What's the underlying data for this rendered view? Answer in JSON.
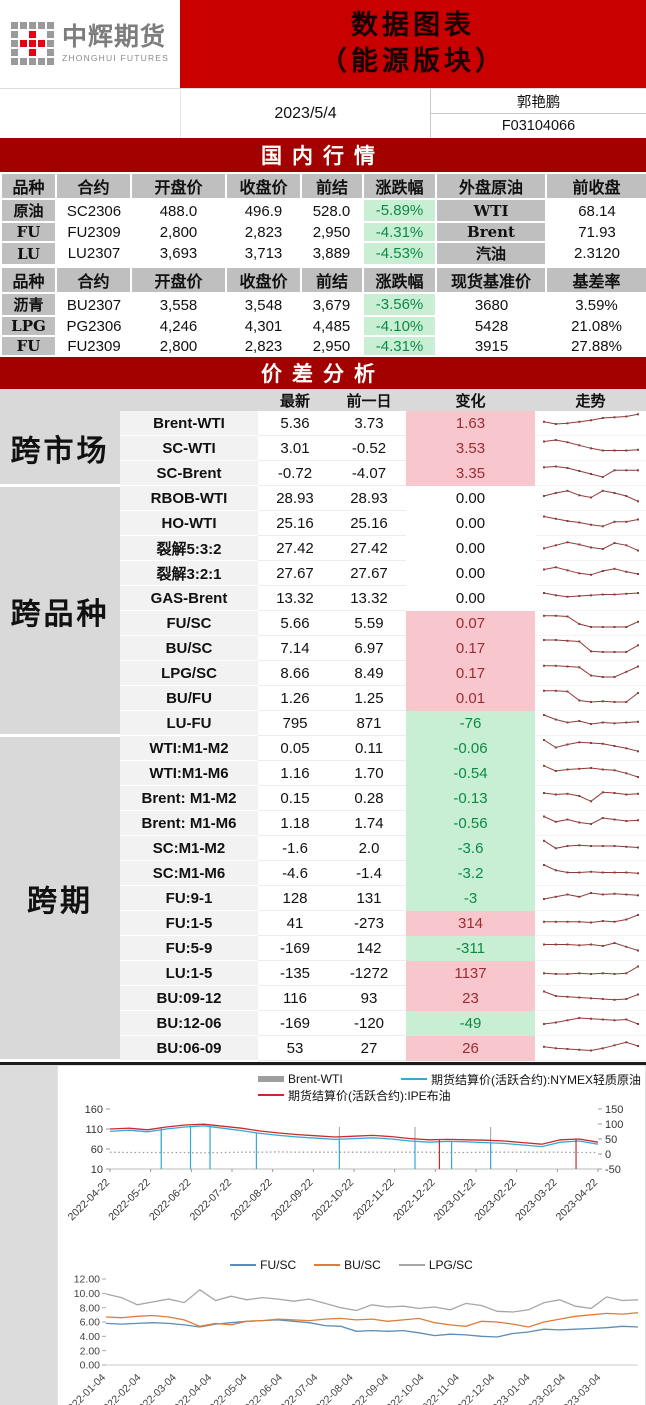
{
  "header": {
    "logo_cn": "中辉期货",
    "logo_en": "ZHONGHUI FUTURES",
    "title_line1": "数据图表",
    "title_line2": "（能源版块）",
    "date": "2023/5/4",
    "author": "郭艳鹏",
    "license_no": "F03104066"
  },
  "colors": {
    "title_bg": "#c80000",
    "section_bg": "#a30000",
    "header_gray": "#bfbfbf",
    "group_gray": "#d9d9d9",
    "label_gray": "#f2f2f2",
    "green_bg": "#c8eed3",
    "green_text": "#0b8a46",
    "pink_bg": "#f7c7cd",
    "pink_text": "#9c2b35",
    "spark": "#8e3b3b",
    "logo_red": "#e60012",
    "logo_gray": "#9a9a9a",
    "chart1_gray": "#9e9e9e",
    "chart1_blue": "#35a7dc",
    "chart1_red": "#cc2a2a",
    "chart2_blue": "#5b8db8",
    "chart2_orange": "#e07b39",
    "chart2_gray": "#a6a6a6"
  },
  "domestic": {
    "section_title": "国内行情",
    "table1": {
      "headers": [
        "品种",
        "合约",
        "开盘价",
        "收盘价",
        "前结",
        "涨跌幅",
        "外盘原油",
        "前收盘"
      ],
      "rows": [
        {
          "variety": "原油",
          "contract": "SC2306",
          "open": "488.0",
          "close": "496.9",
          "prev": "528.0",
          "chg": "-5.89%",
          "ext": "WTI",
          "ext_val": "68.14"
        },
        {
          "variety": "FU",
          "contract": "FU2309",
          "open": "2,800",
          "close": "2,823",
          "prev": "2,950",
          "chg": "-4.31%",
          "ext": "Brent",
          "ext_val": "71.93"
        },
        {
          "variety": "LU",
          "contract": "LU2307",
          "open": "3,693",
          "close": "3,713",
          "prev": "3,889",
          "chg": "-4.53%",
          "ext": "汽油",
          "ext_val": "2.3120"
        }
      ]
    },
    "table2": {
      "headers": [
        "品种",
        "合约",
        "开盘价",
        "收盘价",
        "前结",
        "涨跌幅",
        "现货基准价",
        "基差率"
      ],
      "rows": [
        {
          "variety": "沥青",
          "contract": "BU2307",
          "open": "3,558",
          "close": "3,548",
          "prev": "3,679",
          "chg": "-3.56%",
          "spot": "3680",
          "basis": "3.59%"
        },
        {
          "variety": "LPG",
          "contract": "PG2306",
          "open": "4,246",
          "close": "4,301",
          "prev": "4,485",
          "chg": "-4.10%",
          "spot": "5428",
          "basis": "21.08%"
        },
        {
          "variety": "FU",
          "contract": "FU2309",
          "open": "2,800",
          "close": "2,823",
          "prev": "2,950",
          "chg": "-4.31%",
          "spot": "3915",
          "basis": "27.88%"
        }
      ]
    }
  },
  "spread": {
    "section_title": "价差分析",
    "headers": [
      "",
      "",
      "最新",
      "前一日",
      "变化",
      "走势"
    ],
    "groups": [
      {
        "name": "跨市场",
        "rows": [
          {
            "label": "Brent-WTI",
            "latest": "5.36",
            "prev": "3.73",
            "change": "1.63",
            "dir": "up",
            "spark": [
              0.45,
              0.3,
              0.35,
              0.45,
              0.55,
              0.7,
              0.75,
              0.8,
              0.95
            ]
          },
          {
            "label": "SC-WTI",
            "latest": "3.01",
            "prev": "-0.52",
            "change": "3.53",
            "dir": "up",
            "spark": [
              0.8,
              0.9,
              0.75,
              0.55,
              0.35,
              0.2,
              0.2,
              0.2,
              0.25
            ]
          },
          {
            "label": "SC-Brent",
            "latest": "-0.72",
            "prev": "-4.07",
            "change": "3.35",
            "dir": "up",
            "spark": [
              0.75,
              0.8,
              0.7,
              0.5,
              0.3,
              0.1,
              0.55,
              0.55,
              0.55
            ]
          }
        ]
      },
      {
        "name": "跨品种",
        "rows": [
          {
            "label": "RBOB-WTI",
            "latest": "28.93",
            "prev": "28.93",
            "change": "0.00",
            "dir": "zero",
            "spark": [
              0.5,
              0.7,
              0.85,
              0.55,
              0.4,
              0.85,
              0.7,
              0.5,
              0.15
            ]
          },
          {
            "label": "HO-WTI",
            "latest": "25.16",
            "prev": "25.16",
            "change": "0.00",
            "dir": "zero",
            "spark": [
              0.8,
              0.65,
              0.5,
              0.4,
              0.25,
              0.15,
              0.45,
              0.45,
              0.6
            ]
          },
          {
            "label": "裂解5:3:2",
            "latest": "27.42",
            "prev": "27.42",
            "change": "0.00",
            "dir": "zero",
            "spark": [
              0.35,
              0.55,
              0.75,
              0.6,
              0.4,
              0.3,
              0.7,
              0.55,
              0.2
            ]
          },
          {
            "label": "裂解3:2:1",
            "latest": "27.67",
            "prev": "27.67",
            "change": "0.00",
            "dir": "zero",
            "spark": [
              0.6,
              0.75,
              0.55,
              0.35,
              0.25,
              0.5,
              0.65,
              0.45,
              0.3
            ]
          },
          {
            "label": "GAS-Brent",
            "latest": "13.32",
            "prev": "13.32",
            "change": "0.00",
            "dir": "zero",
            "spark": [
              0.7,
              0.55,
              0.45,
              0.5,
              0.55,
              0.6,
              0.6,
              0.65,
              0.7
            ]
          },
          {
            "label": "FU/SC",
            "latest": "5.66",
            "prev": "5.59",
            "change": "0.07",
            "dir": "up",
            "spark": [
              0.85,
              0.85,
              0.8,
              0.3,
              0.1,
              0.1,
              0.1,
              0.1,
              0.45
            ]
          },
          {
            "label": "BU/SC",
            "latest": "7.14",
            "prev": "6.97",
            "change": "0.17",
            "dir": "up",
            "spark": [
              0.9,
              0.9,
              0.85,
              0.8,
              0.15,
              0.1,
              0.1,
              0.1,
              0.55
            ]
          },
          {
            "label": "LPG/SC",
            "latest": "8.66",
            "prev": "8.49",
            "change": "0.17",
            "dir": "up",
            "spark": [
              0.85,
              0.85,
              0.8,
              0.75,
              0.2,
              0.1,
              0.1,
              0.45,
              0.8
            ]
          },
          {
            "label": "BU/FU",
            "latest": "1.26",
            "prev": "1.25",
            "change": "0.01",
            "dir": "up",
            "spark": [
              0.85,
              0.85,
              0.8,
              0.2,
              0.1,
              0.15,
              0.1,
              0.1,
              0.7
            ]
          },
          {
            "label": "LU-FU",
            "latest": "795",
            "prev": "871",
            "change": "-76",
            "dir": "down",
            "spark": [
              0.9,
              0.6,
              0.4,
              0.5,
              0.3,
              0.4,
              0.35,
              0.4,
              0.45
            ]
          }
        ]
      },
      {
        "name": "跨期",
        "rows": [
          {
            "label": "WTI:M1-M2",
            "latest": "0.05",
            "prev": "0.11",
            "change": "-0.06",
            "dir": "down",
            "spark": [
              0.9,
              0.4,
              0.6,
              0.75,
              0.7,
              0.65,
              0.5,
              0.35,
              0.15
            ]
          },
          {
            "label": "WTI:M1-M6",
            "latest": "1.16",
            "prev": "1.70",
            "change": "-0.54",
            "dir": "down",
            "spark": [
              0.85,
              0.5,
              0.6,
              0.65,
              0.7,
              0.6,
              0.55,
              0.35,
              0.1
            ]
          },
          {
            "label": "Brent: M1-M2",
            "latest": "0.15",
            "prev": "0.28",
            "change": "-0.13",
            "dir": "down",
            "spark": [
              0.7,
              0.6,
              0.65,
              0.5,
              0.15,
              0.75,
              0.7,
              0.6,
              0.65
            ]
          },
          {
            "label": "Brent: M1-M6",
            "latest": "1.18",
            "prev": "1.74",
            "change": "-0.56",
            "dir": "down",
            "spark": [
              0.8,
              0.45,
              0.6,
              0.4,
              0.3,
              0.7,
              0.6,
              0.5,
              0.55
            ]
          },
          {
            "label": "SC:M1-M2",
            "latest": "-1.6",
            "prev": "2.0",
            "change": "-3.6",
            "dir": "down",
            "spark": [
              0.85,
              0.35,
              0.5,
              0.55,
              0.5,
              0.5,
              0.5,
              0.45,
              0.4
            ]
          },
          {
            "label": "SC:M1-M6",
            "latest": "-4.6",
            "prev": "-1.4",
            "change": "-3.2",
            "dir": "down",
            "spark": [
              0.9,
              0.55,
              0.4,
              0.4,
              0.45,
              0.4,
              0.4,
              0.4,
              0.35
            ]
          },
          {
            "label": "FU:9-1",
            "latest": "128",
            "prev": "131",
            "change": "-3",
            "dir": "down",
            "spark": [
              0.3,
              0.45,
              0.6,
              0.45,
              0.7,
              0.6,
              0.65,
              0.6,
              0.55
            ]
          },
          {
            "label": "FU:1-5",
            "latest": "41",
            "prev": "-273",
            "change": "314",
            "dir": "up",
            "spark": [
              0.45,
              0.45,
              0.45,
              0.45,
              0.4,
              0.5,
              0.45,
              0.6,
              0.9
            ]
          },
          {
            "label": "FU:5-9",
            "latest": "-169",
            "prev": "142",
            "change": "-311",
            "dir": "down",
            "spark": [
              0.6,
              0.6,
              0.6,
              0.55,
              0.6,
              0.5,
              0.7,
              0.45,
              0.2
            ]
          },
          {
            "label": "LU:1-5",
            "latest": "-135",
            "prev": "-1272",
            "change": "1137",
            "dir": "up",
            "spark": [
              0.35,
              0.3,
              0.3,
              0.35,
              0.3,
              0.35,
              0.3,
              0.35,
              0.8
            ]
          },
          {
            "label": "BU:09-12",
            "latest": "116",
            "prev": "93",
            "change": "23",
            "dir": "up",
            "spark": [
              0.8,
              0.5,
              0.45,
              0.4,
              0.35,
              0.3,
              0.25,
              0.3,
              0.6
            ]
          },
          {
            "label": "BU:12-06",
            "latest": "-169",
            "prev": "-120",
            "change": "-49",
            "dir": "down",
            "spark": [
              0.3,
              0.4,
              0.55,
              0.7,
              0.65,
              0.6,
              0.55,
              0.6,
              0.3
            ]
          },
          {
            "label": "BU:06-09",
            "latest": "53",
            "prev": "27",
            "change": "26",
            "dir": "up",
            "spark": [
              0.45,
              0.35,
              0.3,
              0.25,
              0.2,
              0.35,
              0.55,
              0.75,
              0.5
            ]
          }
        ]
      }
    ]
  },
  "chart_data": [
    {
      "type": "line",
      "name": "crude-oil-settlement-prices",
      "legend_rows": [
        [
          0,
          1
        ],
        [
          2
        ]
      ],
      "x_ticks": [
        "2022-04-22",
        "2022-05-22",
        "2022-06-22",
        "2022-07-22",
        "2022-08-22",
        "2022-09-22",
        "2022-10-22",
        "2022-11-22",
        "2022-12-22",
        "2023-01-22",
        "2023-02-22",
        "2023-03-22",
        "2023-04-22"
      ],
      "left_ylim": [
        10,
        160
      ],
      "left_ticks": [
        160,
        110,
        60,
        10
      ],
      "right_ylim": [
        -50,
        150
      ],
      "right_ticks": [
        150,
        100,
        50,
        0,
        -50
      ],
      "series": [
        {
          "label": "Brent-WTI",
          "axis": "right",
          "color_key": "chart1_gray",
          "thick_legend": true,
          "dotted": true,
          "values": [
            6,
            5,
            5,
            5,
            5,
            4,
            5,
            6,
            6,
            7,
            6,
            6,
            6,
            6,
            6,
            6,
            6,
            6,
            5,
            5,
            6,
            6,
            6,
            6,
            6,
            5,
            5
          ],
          "up_spikes": [
            0.105,
            0.165,
            0.205,
            0.47,
            0.625,
            0.78
          ],
          "up_spike_to": 90
        },
        {
          "label": "期货结算价(活跃合约):NYMEX轻质原油",
          "axis": "left",
          "color_key": "chart1_blue",
          "values": [
            104,
            107,
            103,
            110,
            115,
            118,
            112,
            106,
            99,
            94,
            90,
            87,
            84,
            86,
            88,
            85,
            80,
            77,
            79,
            78,
            76,
            74,
            70,
            66,
            77,
            80,
            72
          ],
          "dip_spikes": [
            0.105,
            0.165,
            0.205,
            0.3,
            0.47,
            0.625,
            0.7,
            0.78
          ],
          "dip_spike_to": 10
        },
        {
          "label": "期货结算价(活跃合约):IPE布油",
          "axis": "left",
          "color_key": "chart1_red",
          "values": [
            110,
            112,
            108,
            115,
            120,
            122,
            117,
            112,
            105,
            100,
            96,
            93,
            90,
            92,
            94,
            91,
            86,
            83,
            84,
            83,
            82,
            80,
            76,
            72,
            83,
            85,
            77
          ],
          "dip_spikes": [
            0.675,
            0.955
          ],
          "dip_spike_to": 10
        }
      ]
    },
    {
      "type": "line",
      "name": "ratio-spreads",
      "x_ticks": [
        "2022-01-04",
        "2022-02-04",
        "2022-03-04",
        "2022-04-04",
        "2022-05-04",
        "2022-06-04",
        "2022-07-04",
        "2022-08-04",
        "2022-09-04",
        "2022-10-04",
        "2022-11-04",
        "2022-12-04",
        "2023-01-04",
        "2023-02-04",
        "2023-03-04"
      ],
      "ylim": [
        0,
        12
      ],
      "y_ticks": [
        "12.00",
        "10.00",
        "8.00",
        "6.00",
        "4.00",
        "2.00",
        "0.00"
      ],
      "series": [
        {
          "label": "FU/SC",
          "color_key": "chart2_blue",
          "values": [
            5.8,
            5.7,
            5.8,
            5.9,
            5.8,
            5.6,
            5.3,
            5.7,
            5.9,
            6.1,
            6.2,
            6.3,
            6.1,
            5.9,
            5.5,
            5.4,
            4.7,
            4.8,
            4.7,
            4.8,
            4.5,
            4.1,
            4.3,
            4.2,
            4.0,
            3.9,
            4.4,
            4.6,
            5.0,
            4.9,
            5.0,
            5.1,
            5.2,
            5.4,
            5.3
          ]
        },
        {
          "label": "BU/SC",
          "color_key": "chart2_orange",
          "values": [
            6.7,
            6.6,
            6.8,
            6.9,
            6.7,
            6.3,
            5.4,
            5.8,
            5.6,
            6.1,
            6.2,
            6.4,
            6.3,
            6.2,
            6.4,
            6.5,
            6.3,
            6.4,
            6.1,
            6.3,
            6.5,
            5.9,
            5.6,
            5.4,
            6.1,
            6.0,
            5.7,
            5.3,
            6.0,
            6.4,
            6.8,
            7.0,
            7.2,
            7.1,
            7.3
          ]
        },
        {
          "label": "LPG/SC",
          "color_key": "chart2_gray",
          "values": [
            9.9,
            9.4,
            8.4,
            8.8,
            9.2,
            8.7,
            10.5,
            9.0,
            9.6,
            9.1,
            9.4,
            9.2,
            8.9,
            9.2,
            8.6,
            8.0,
            7.6,
            8.4,
            8.1,
            8.2,
            7.9,
            8.1,
            7.7,
            8.6,
            8.3,
            7.5,
            7.4,
            7.7,
            8.7,
            9.1,
            8.2,
            7.9,
            9.5,
            9.0,
            9.1
          ]
        }
      ]
    }
  ]
}
